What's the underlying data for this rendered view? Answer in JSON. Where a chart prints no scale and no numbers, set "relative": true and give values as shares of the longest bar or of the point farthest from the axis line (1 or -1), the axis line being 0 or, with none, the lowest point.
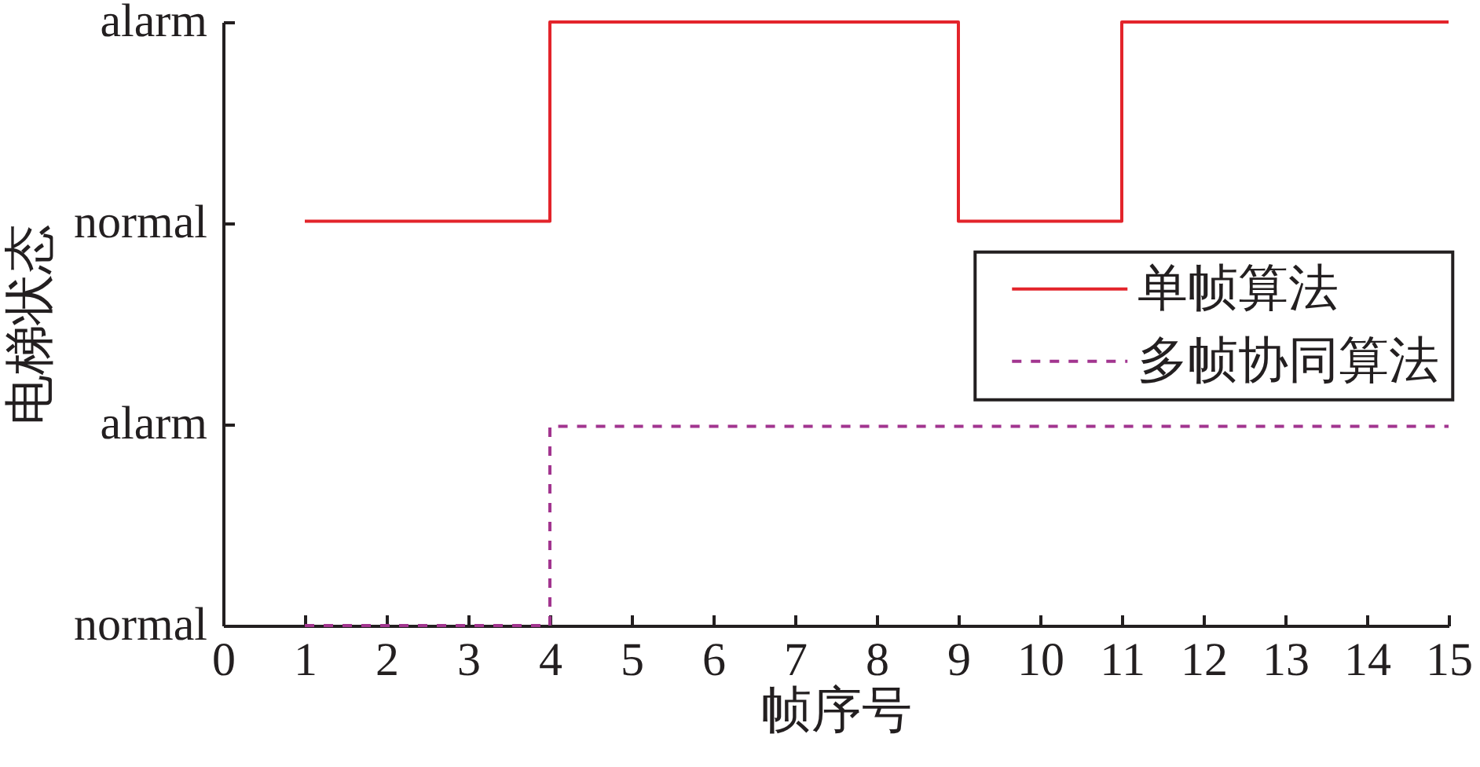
{
  "chart_data": {
    "type": "step",
    "relative": true,
    "xlabel": "帧序号",
    "ylabel": "电梯状态",
    "x": [
      1,
      2,
      3,
      4,
      5,
      6,
      7,
      8,
      9,
      10,
      11,
      12,
      13,
      14,
      15
    ],
    "series": [
      {
        "name": "单帧算法",
        "color": "#e3242b",
        "line_style": "solid",
        "values": [
          0.67,
          0.67,
          0.67,
          1,
          1,
          1,
          1,
          1,
          0.67,
          0.67,
          1,
          1,
          1,
          1,
          1
        ]
      },
      {
        "name": "多帧协同算法",
        "color": "#a2358f",
        "line_style": "dashed",
        "values": [
          0,
          0,
          0,
          0.33,
          0.33,
          0.33,
          0.33,
          0.33,
          0.33,
          0.33,
          0.33,
          0.33,
          0.33,
          0.33,
          0.33
        ]
      }
    ],
    "xlim": [
      0,
      15
    ],
    "xticks": [
      0,
      1,
      2,
      3,
      4,
      5,
      6,
      7,
      8,
      9,
      10,
      11,
      12,
      13,
      14,
      15
    ],
    "annotations": [
      "alarm",
      "normal",
      "alarm",
      "normal"
    ],
    "grid": false,
    "legend": "right"
  }
}
